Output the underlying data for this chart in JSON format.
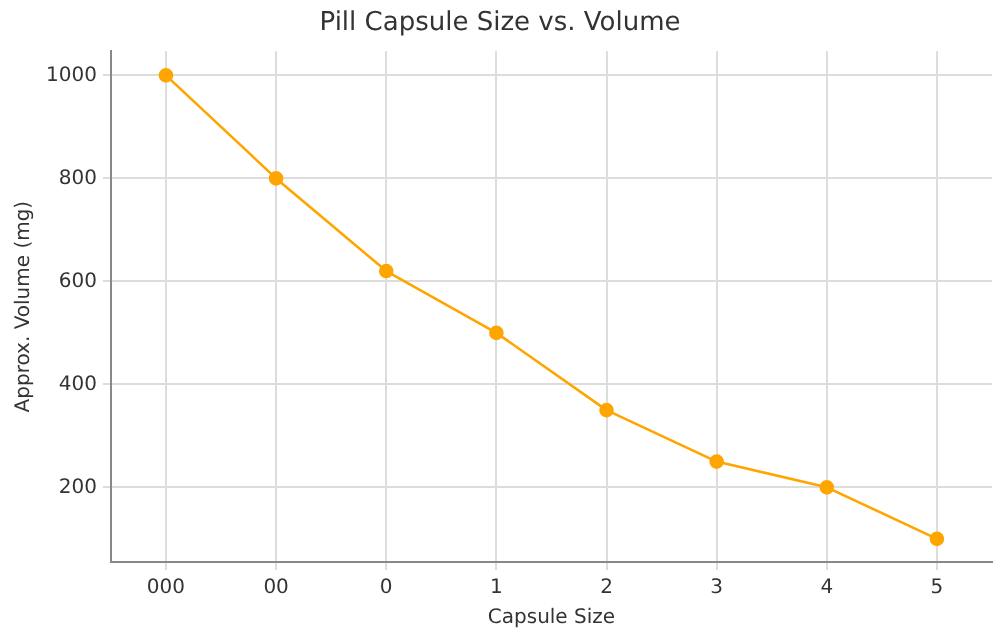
{
  "chart_data": {
    "type": "line",
    "title": "Pill Capsule Size vs. Volume",
    "xlabel": "Capsule Size",
    "ylabel": "Approx. Volume (mg)",
    "categories": [
      "000",
      "00",
      "0",
      "1",
      "2",
      "3",
      "4",
      "5"
    ],
    "series": [
      {
        "color": "#ffa500",
        "values": [
          1000,
          800,
          620,
          500,
          350,
          250,
          200,
          100
        ]
      }
    ],
    "ylim": [
      55,
      1047
    ],
    "yticks": [
      200,
      400,
      600,
      800,
      1000
    ],
    "grid": true,
    "marker": "circle",
    "line_style": "solid",
    "legend": false
  }
}
